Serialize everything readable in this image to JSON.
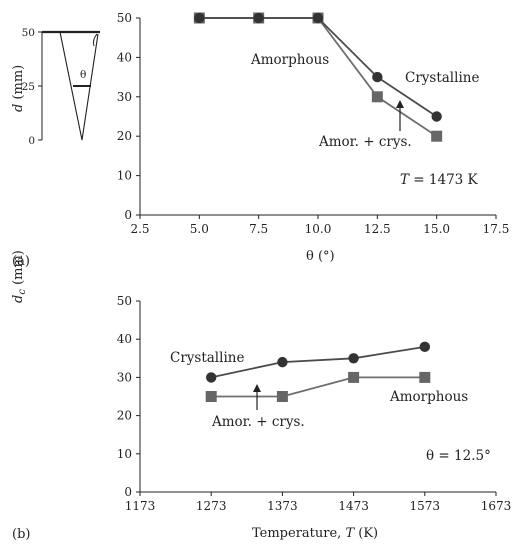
{
  "chart_data": [
    {
      "panel": "(a)",
      "type": "line",
      "xlabel": "θ (°)",
      "xlim": [
        2.5,
        17.5
      ],
      "ylim": [
        0,
        50
      ],
      "x_ticks": [
        "2.5",
        "5.0",
        "7.5",
        "10.0",
        "12.5",
        "15.0",
        "17.5"
      ],
      "y_ticks": [
        "0",
        "10",
        "20",
        "30",
        "40",
        "50"
      ],
      "series": [
        {
          "name": "Crystalline",
          "marker": "circle",
          "color": "#4a4a4a",
          "x": [
            5.0,
            7.5,
            10.0,
            12.5,
            15.0
          ],
          "y": [
            50,
            50,
            50,
            35,
            25
          ]
        },
        {
          "name": "Amorphous",
          "marker": "square",
          "color": "#6e6e6e",
          "x": [
            5.0,
            7.5,
            10.0,
            12.5,
            15.0
          ],
          "y": [
            50,
            50,
            50,
            30,
            20
          ]
        }
      ],
      "annotations": {
        "amorphous": "Amorphous",
        "crystalline": "Crystalline",
        "mixed": "Amor. + crys.",
        "condition_var": "T",
        "condition_val": " = 1473 K"
      },
      "inset": {
        "ylabel_var": "d",
        "ylabel_unit": " (mm)",
        "ticks": [
          "0",
          "25",
          "50"
        ],
        "angle_label": "θ"
      }
    },
    {
      "panel": "(b)",
      "type": "line",
      "xlabel_prefix": "Temperature, ",
      "xlabel_var": "T",
      "xlabel_suffix": " (K)",
      "xlim": [
        1173,
        1673
      ],
      "ylim": [
        0,
        50
      ],
      "x_ticks": [
        "1173",
        "1273",
        "1373",
        "1473",
        "1573",
        "1673"
      ],
      "y_ticks": [
        "0",
        "10",
        "20",
        "30",
        "40",
        "50"
      ],
      "series": [
        {
          "name": "Crystalline",
          "marker": "circle",
          "color": "#4a4a4a",
          "x": [
            1273,
            1373,
            1473,
            1573
          ],
          "y": [
            30,
            34,
            35,
            38
          ]
        },
        {
          "name": "Amorphous",
          "marker": "square",
          "color": "#6e6e6e",
          "x": [
            1273,
            1373,
            1473,
            1573
          ],
          "y": [
            25,
            25,
            30,
            30
          ]
        }
      ],
      "annotations": {
        "crystalline": "Crystalline",
        "mixed": "Amor. + crys.",
        "amorphous": "Amorphous",
        "condition": "θ = 12.5°"
      }
    }
  ],
  "shared_ylabel_var": "d",
  "shared_ylabel_sub": "c",
  "shared_ylabel_unit": " (mm)"
}
